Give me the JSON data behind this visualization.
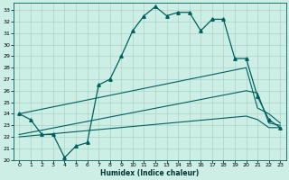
{
  "xlabel": "Humidex (Indice chaleur)",
  "bg_color": "#cceee4",
  "grid_color": "#aad4c8",
  "line_color": "#006060",
  "xlim": [
    -0.5,
    23.5
  ],
  "ylim": [
    20,
    33.6
  ],
  "yticks": [
    20,
    21,
    22,
    23,
    24,
    25,
    26,
    27,
    28,
    29,
    30,
    31,
    32,
    33
  ],
  "xticks": [
    0,
    1,
    2,
    3,
    4,
    5,
    6,
    7,
    8,
    9,
    10,
    11,
    12,
    13,
    14,
    15,
    16,
    17,
    18,
    19,
    20,
    21,
    22,
    23
  ],
  "line1_x": [
    0,
    1,
    2,
    3,
    4,
    5,
    6,
    7,
    8,
    9,
    10,
    11,
    12,
    13,
    14,
    15,
    16,
    17,
    18,
    19,
    20,
    21,
    22,
    23
  ],
  "line1_y": [
    24.0,
    23.5,
    22.2,
    22.2,
    20.2,
    21.2,
    21.5,
    26.5,
    27.0,
    29.0,
    31.2,
    32.5,
    33.3,
    32.5,
    32.8,
    32.8,
    31.2,
    32.2,
    32.2,
    28.8,
    28.8,
    25.5,
    23.5,
    22.8
  ],
  "line2_x": [
    0,
    20,
    21,
    22,
    23
  ],
  "line2_y": [
    24.0,
    28.0,
    24.5,
    24.0,
    23.2
  ],
  "line3_x": [
    0,
    20,
    21,
    22,
    23
  ],
  "line3_y": [
    22.2,
    26.0,
    25.8,
    23.2,
    23.0
  ],
  "line4_x": [
    0,
    20,
    21,
    22,
    23
  ],
  "line4_y": [
    22.0,
    23.8,
    23.5,
    22.8,
    22.8
  ]
}
